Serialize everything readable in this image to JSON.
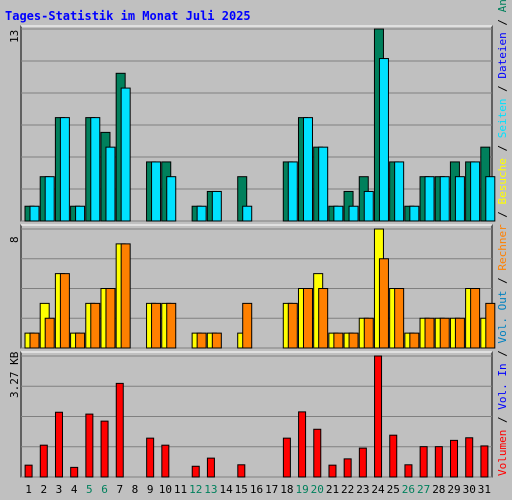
{
  "title": "Tages-Statistik im Monat Juli 2025",
  "colors": {
    "background": "#c0c0c0",
    "title": "#0000ff",
    "grid": "#808080",
    "anfragen": "#00805c",
    "dateien": "#00e1ff",
    "besuche": "#ffff00",
    "rechner": "#ff8000",
    "volumen": "#ff0000",
    "weekend_label": "#00805c",
    "sep": "#000000"
  },
  "side_legend": [
    {
      "text": "Volumen",
      "color": "#ff0000"
    },
    {
      "text": " / ",
      "color": "#000000"
    },
    {
      "text": "Vol. In",
      "color": "#0000ff"
    },
    {
      "text": " / ",
      "color": "#000000"
    },
    {
      "text": "Vol. Out",
      "color": "#0080c0"
    },
    {
      "text": " / ",
      "color": "#000000"
    },
    {
      "text": "Rechner",
      "color": "#ff8000"
    },
    {
      "text": " / ",
      "color": "#000000"
    },
    {
      "text": "Besuche",
      "color": "#ffff00"
    },
    {
      "text": " / ",
      "color": "#000000"
    },
    {
      "text": "Seiten",
      "color": "#00e1ff"
    },
    {
      "text": " / ",
      "color": "#000000"
    },
    {
      "text": "Dateien",
      "color": "#0000ff"
    },
    {
      "text": " / ",
      "color": "#000000"
    },
    {
      "text": "Anfragen",
      "color": "#00805c"
    }
  ],
  "chart_data": {
    "type": "bar",
    "x": [
      1,
      2,
      3,
      4,
      5,
      6,
      7,
      8,
      9,
      10,
      11,
      12,
      13,
      14,
      15,
      16,
      17,
      18,
      19,
      20,
      21,
      22,
      23,
      24,
      25,
      26,
      27,
      28,
      29,
      30,
      31
    ],
    "x_labels": [
      "1",
      "2",
      "3",
      "4",
      "5",
      "6",
      "7",
      "8",
      "9",
      "10",
      "11",
      "12",
      "13",
      "14",
      "15",
      "16",
      "17",
      "18",
      "19",
      "20",
      "21",
      "22",
      "23",
      "24",
      "25",
      "26",
      "27",
      "28",
      "29",
      "30",
      "31"
    ],
    "weekend_days": [
      5,
      6,
      12,
      13,
      19,
      20,
      26,
      27
    ],
    "panels": [
      {
        "axis_max_label": "13",
        "ymax": 13,
        "series": [
          {
            "name": "Anfragen",
            "values": [
              1,
              3,
              7,
              1,
              7,
              6,
              10,
              0,
              4,
              4,
              0,
              1,
              2,
              0,
              3,
              0,
              0,
              4,
              7,
              5,
              1,
              2,
              3,
              13,
              4,
              1,
              3,
              3,
              4,
              4,
              5
            ]
          },
          {
            "name": "Dateien",
            "values": [
              1,
              3,
              7,
              1,
              7,
              5,
              9,
              0,
              4,
              3,
              0,
              1,
              2,
              0,
              1,
              0,
              0,
              4,
              7,
              5,
              1,
              1,
              2,
              11,
              4,
              1,
              3,
              3,
              3,
              4,
              3
            ]
          }
        ]
      },
      {
        "axis_max_label": "8",
        "ymax": 8,
        "series": [
          {
            "name": "Besuche",
            "values": [
              1,
              3,
              5,
              1,
              3,
              4,
              7,
              0,
              3,
              3,
              0,
              1,
              1,
              0,
              1,
              0,
              0,
              3,
              4,
              5,
              1,
              1,
              2,
              8,
              4,
              1,
              2,
              2,
              2,
              4,
              2
            ]
          },
          {
            "name": "Rechner",
            "values": [
              1,
              2,
              5,
              1,
              3,
              4,
              7,
              0,
              3,
              3,
              0,
              1,
              1,
              0,
              3,
              0,
              0,
              3,
              4,
              4,
              1,
              1,
              2,
              6,
              4,
              1,
              2,
              2,
              2,
              4,
              3
            ]
          }
        ]
      },
      {
        "axis_max_label": "3.27 KB",
        "ymax": 3.27,
        "series": [
          {
            "name": "Volumen",
            "values": [
              0.32,
              0.86,
              1.75,
              0.26,
              1.7,
              1.51,
              2.53,
              0,
              1.05,
              0.86,
              0,
              0.29,
              0.51,
              0,
              0.33,
              0,
              0,
              1.05,
              1.76,
              1.29,
              0.32,
              0.49,
              0.78,
              3.27,
              1.13,
              0.33,
              0.82,
              0.82,
              0.99,
              1.06,
              0.84
            ]
          }
        ]
      }
    ]
  }
}
